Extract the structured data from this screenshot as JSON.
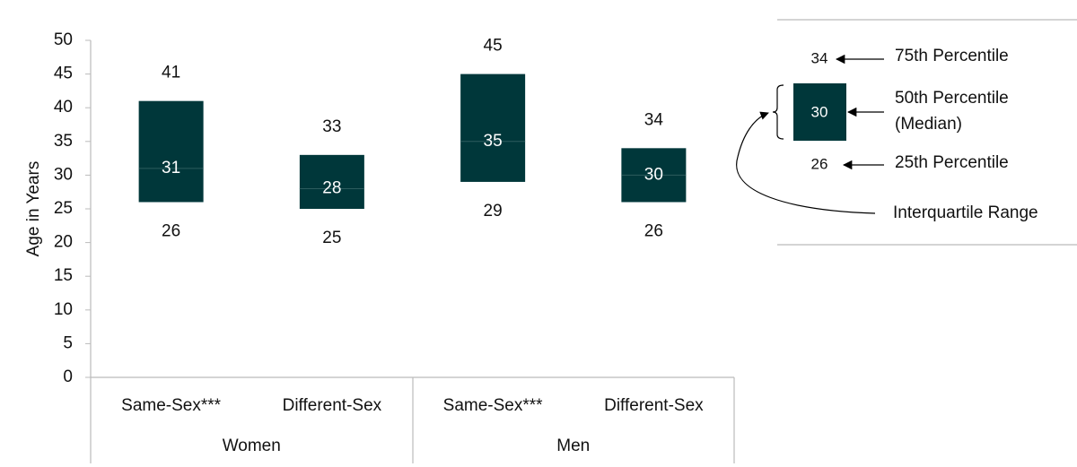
{
  "chart_data": {
    "type": "iqr",
    "y_label": "Age in Years",
    "ylim": [
      0,
      50
    ],
    "yticks": [
      0,
      5,
      10,
      15,
      20,
      25,
      30,
      35,
      40,
      45,
      50
    ],
    "categories": [
      "Same-Sex***",
      "Different-Sex",
      "Same-Sex***",
      "Different-Sex"
    ],
    "groups": [
      "Women",
      "Men"
    ],
    "q1": [
      26,
      25,
      29,
      26
    ],
    "median": [
      31,
      28,
      35,
      30
    ],
    "q3": [
      41,
      33,
      45,
      34
    ],
    "color": "#00373a",
    "key": {
      "q3": 34,
      "median": 30,
      "q1": 26,
      "q3_label": "75th Percentile",
      "median_label": [
        "50th Percentile",
        "(Median)"
      ],
      "q1_label": "25th Percentile",
      "iqr_label": "Interquartile Range"
    }
  }
}
